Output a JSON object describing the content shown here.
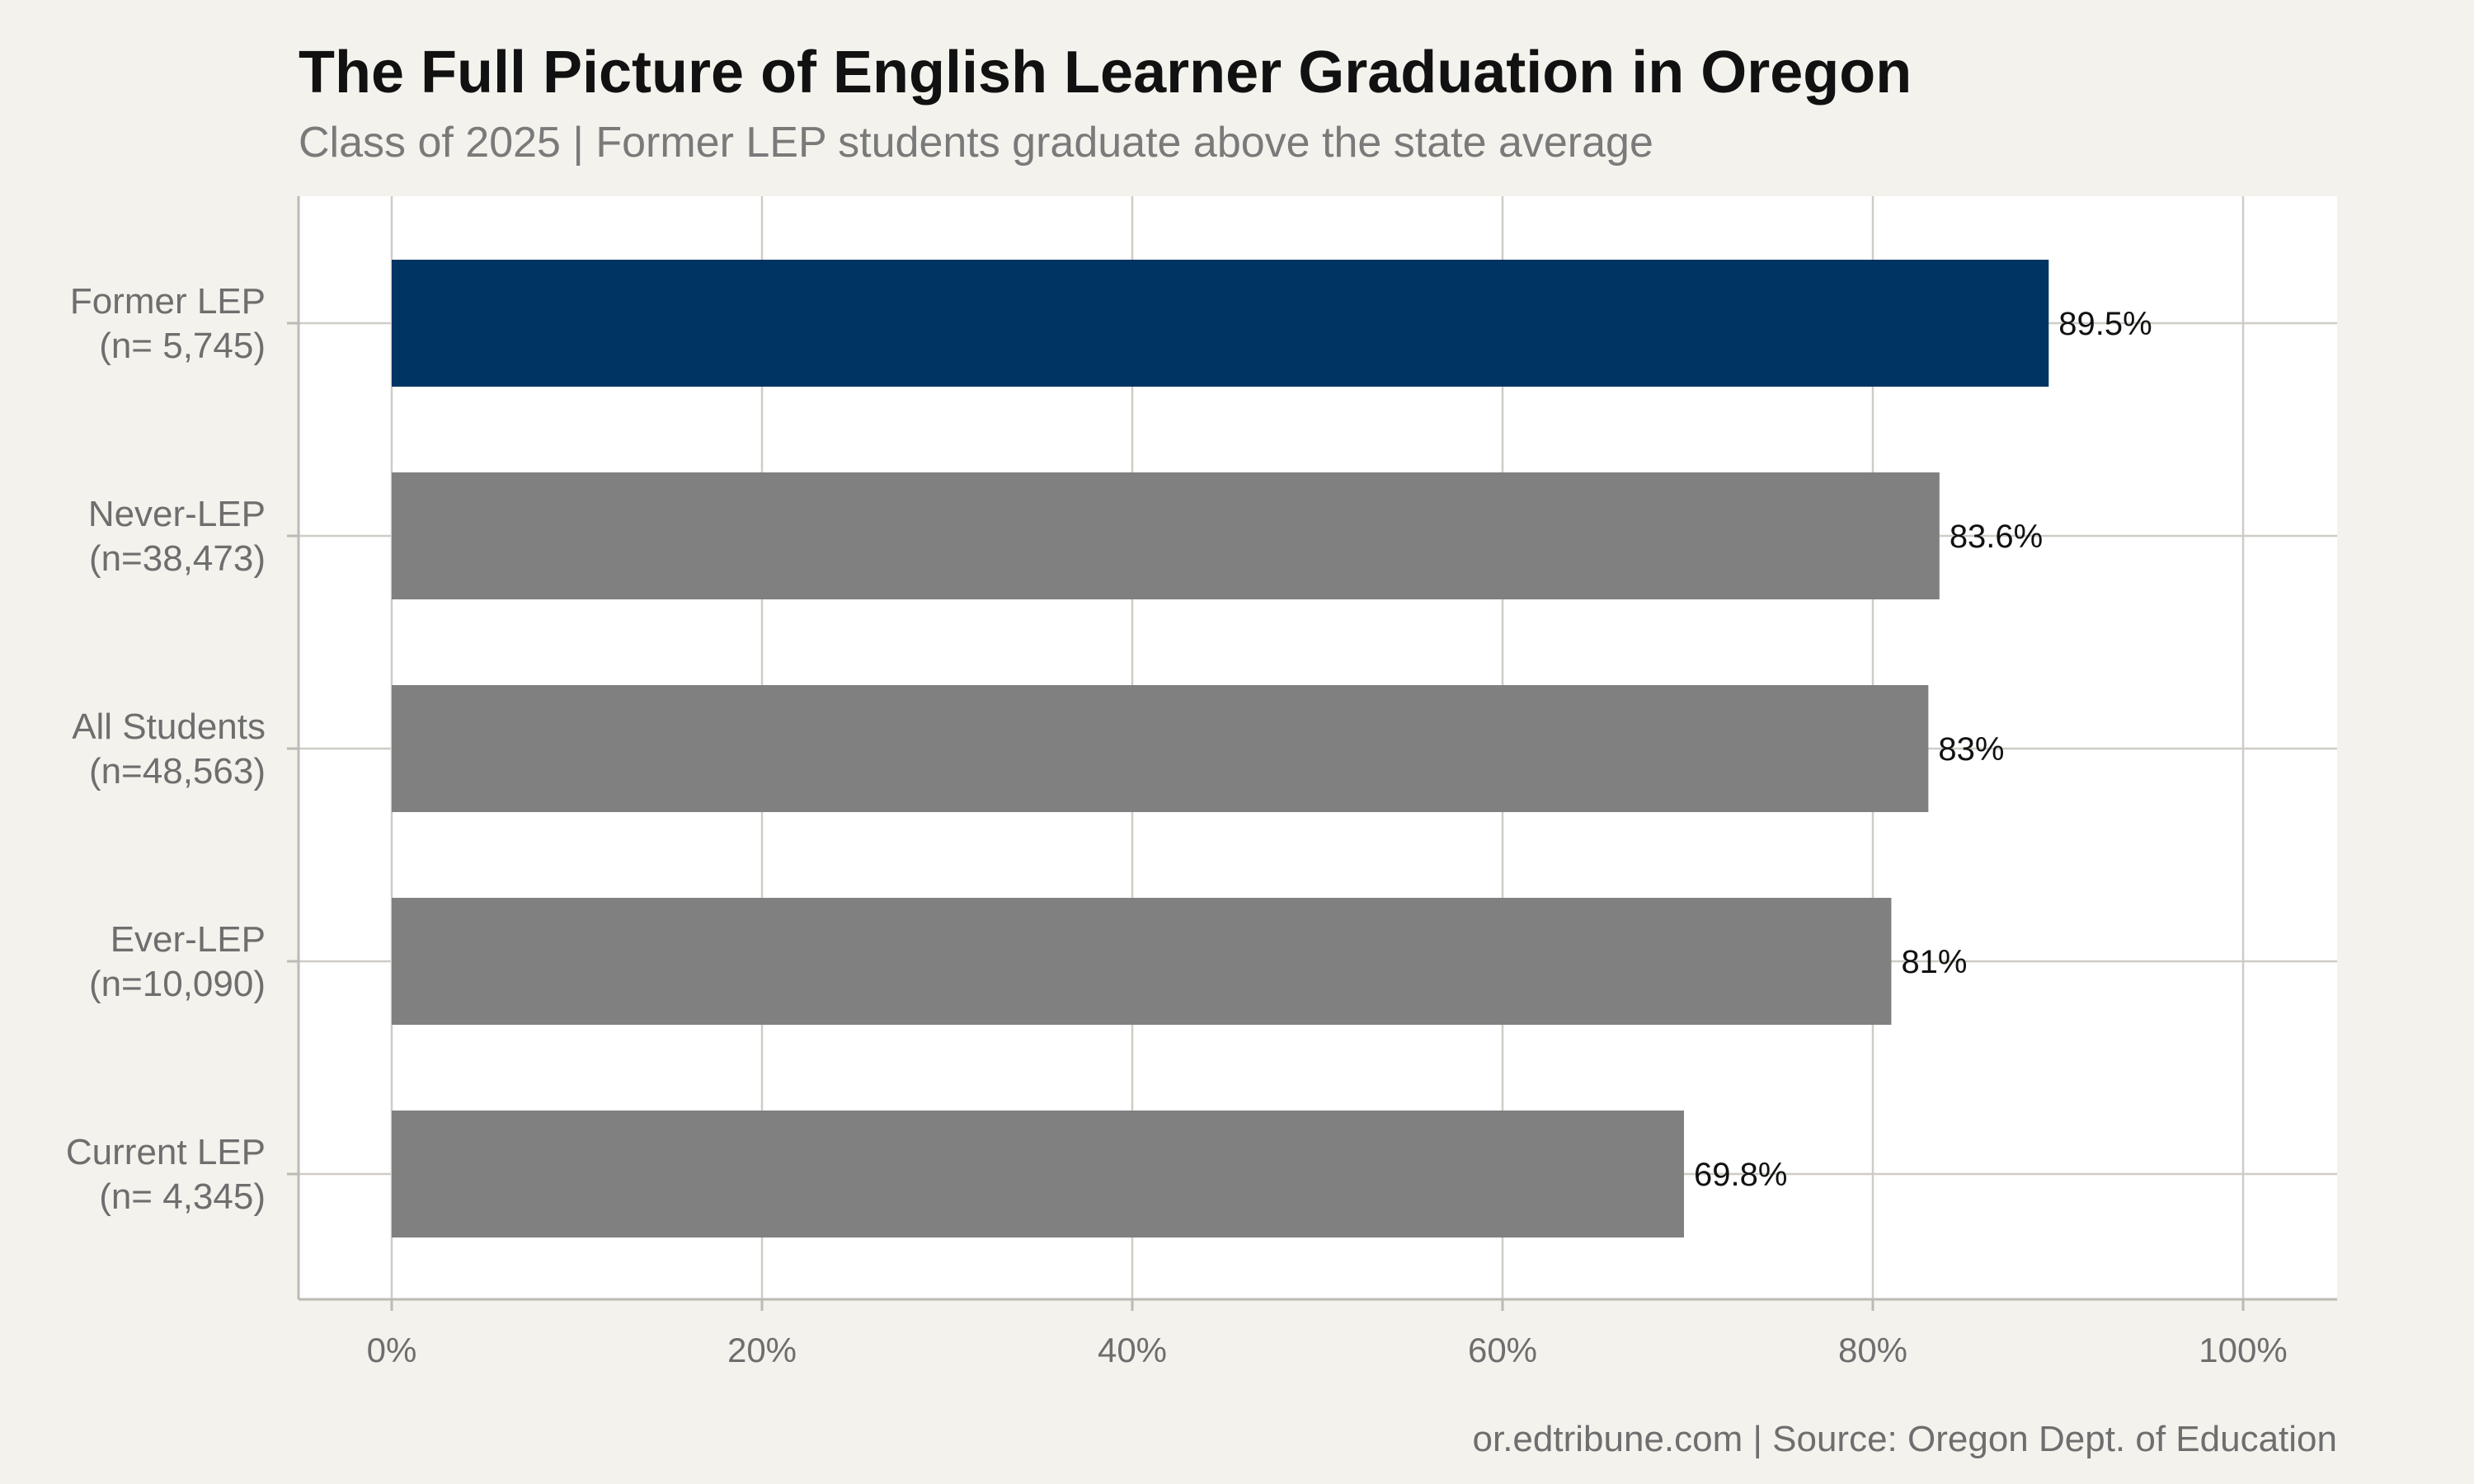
{
  "chart_data": {
    "type": "bar",
    "orientation": "horizontal",
    "title": "The Full Picture of English Learner Graduation in Oregon",
    "subtitle": "Class of 2025 | Former LEP students graduate above the state average",
    "caption": "or.edtribune.com | Source: Oregon Dept. of Education",
    "categories": [
      [
        "Former LEP",
        "(n= 5,745)"
      ],
      [
        "Never-LEP",
        "(n=38,473)"
      ],
      [
        "All Students",
        "(n=48,563)"
      ],
      [
        "Ever-LEP",
        "(n=10,090)"
      ],
      [
        "Current LEP",
        "(n= 4,345)"
      ]
    ],
    "values": [
      89.5,
      83.6,
      83.0,
      81.0,
      69.8
    ],
    "value_labels": [
      "89.5%",
      "83.6%",
      "83%",
      "81%",
      "69.8%"
    ],
    "xlim": [
      0,
      100
    ],
    "xticks": [
      0,
      20,
      40,
      60,
      80,
      100
    ],
    "xtick_labels": [
      "0%",
      "20%",
      "40%",
      "60%",
      "80%",
      "100%"
    ],
    "grid": true,
    "legend": "none",
    "colors": {
      "highlight": "#003462",
      "default": "#808080",
      "background": "#f4f2ed",
      "panel": "#ffffff"
    },
    "highlight_index": 0
  }
}
